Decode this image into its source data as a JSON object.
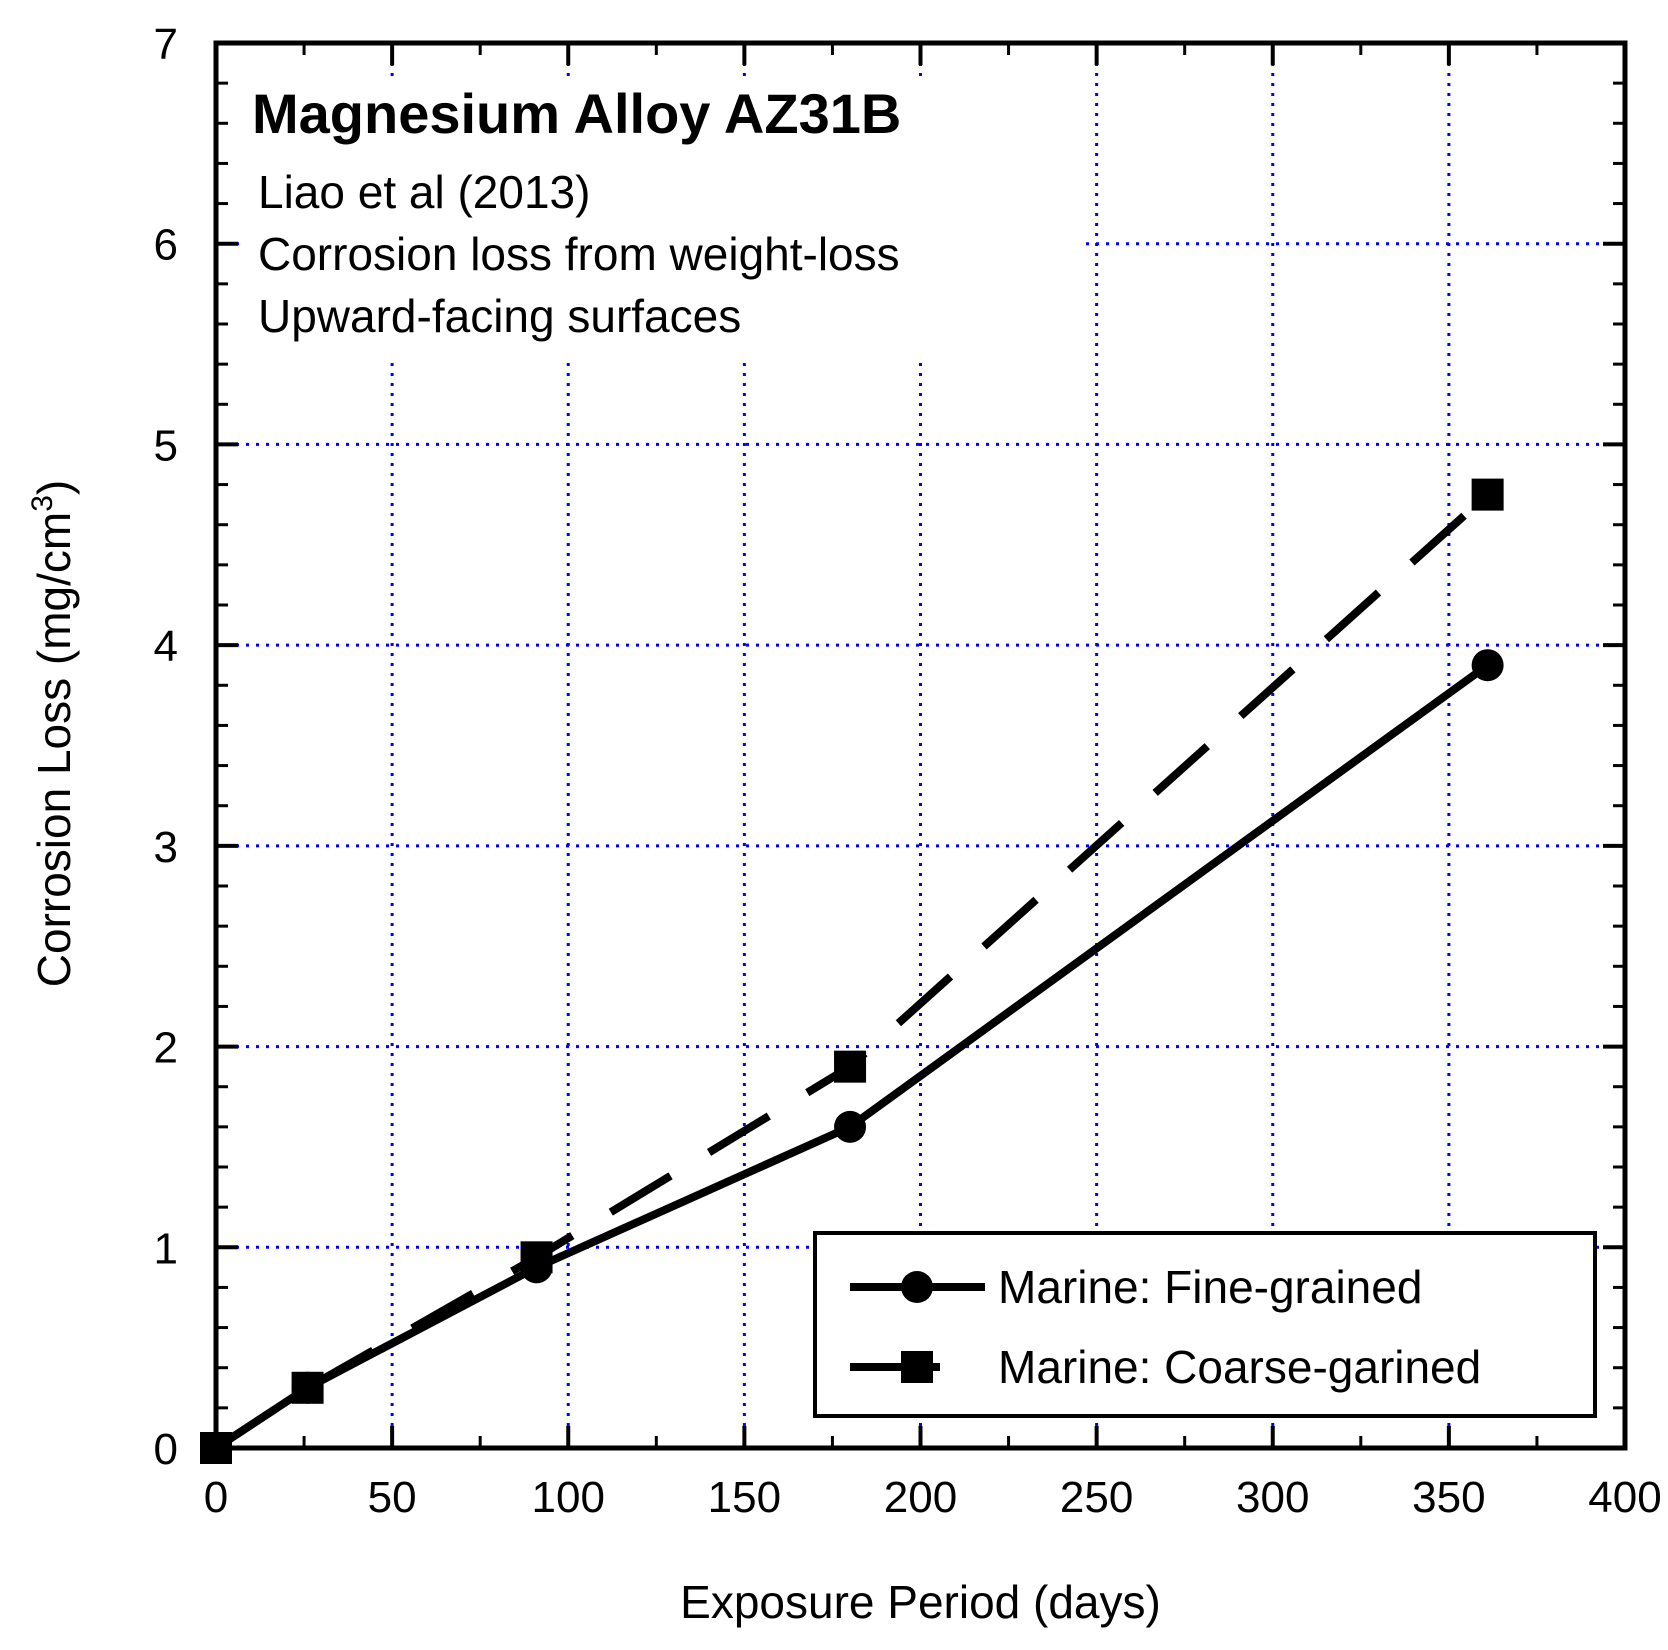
{
  "chart_data": {
    "type": "line",
    "title": "Magnesium Alloy AZ31B",
    "annotations": [
      "Liao et al (2013)",
      "Corrosion loss from weight-loss",
      "Upward-facing surfaces"
    ],
    "xlabel": "Exposure Period (days)",
    "ylabel": "Corrosion Loss (mg/cm",
    "ylabel_superscript": "3",
    "ylabel_close": ")",
    "xlim": [
      0,
      400
    ],
    "ylim": [
      0,
      7
    ],
    "xticks": [
      0,
      50,
      100,
      150,
      200,
      250,
      300,
      350,
      400
    ],
    "yticks": [
      0,
      1,
      2,
      3,
      4,
      5,
      6,
      7
    ],
    "xtick_labels": [
      "0",
      "50",
      "100",
      "150",
      "200",
      "250",
      "300",
      "350",
      "400"
    ],
    "ytick_labels": [
      "0",
      "1",
      "2",
      "3",
      "4",
      "5",
      "6",
      "7"
    ],
    "grid": true,
    "grid_color": "#0000ff",
    "legend_position": "bottom-right",
    "series": [
      {
        "name": "Marine: Fine-grained",
        "line_style": "solid",
        "marker": "circle",
        "color": "#000000",
        "x": [
          0,
          26,
          91,
          180,
          361
        ],
        "y": [
          0,
          0.3,
          0.9,
          1.6,
          3.9
        ]
      },
      {
        "name": "Marine: Coarse-garined",
        "line_style": "dashed",
        "marker": "square",
        "color": "#000000",
        "x": [
          0,
          26,
          91,
          180,
          361
        ],
        "y": [
          0,
          0.3,
          0.95,
          1.9,
          4.75
        ]
      }
    ]
  }
}
